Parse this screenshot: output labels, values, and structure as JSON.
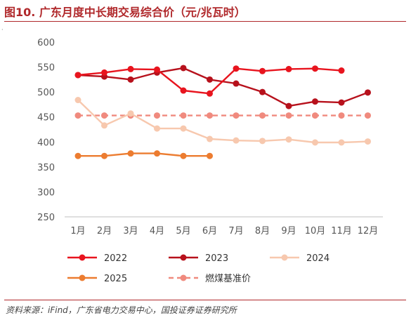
{
  "title": "图10. 广东月度中长期交易综合价（元/兆瓦时）",
  "source": "资料来源：iFind，广东省电力交易中心，国投证券证券研究所",
  "colors": {
    "2022": "#e8141e",
    "2023": "#b7111c",
    "2024": "#f7c8ae",
    "2025": "#ec7c30",
    "benchmark": "#f08a7e",
    "rule": "#b0282b"
  },
  "chart_data": {
    "type": "line",
    "categories": [
      "1月",
      "2月",
      "3月",
      "4月",
      "5月",
      "6月",
      "7月",
      "8月",
      "9月",
      "10月",
      "11月",
      "12月"
    ],
    "yticks": [
      250,
      300,
      350,
      400,
      450,
      500,
      550,
      600
    ],
    "ylim": [
      250,
      600
    ],
    "grid": false,
    "legend_position": "bottom",
    "series": [
      {
        "name": "2022",
        "key": "2022",
        "values": [
          534,
          539,
          546,
          545,
          503,
          497,
          547,
          542,
          546,
          547,
          543,
          null
        ]
      },
      {
        "name": "2023",
        "key": "2023",
        "values": [
          534,
          531,
          525,
          539,
          548,
          525,
          517,
          500,
          472,
          481,
          479,
          499
        ]
      },
      {
        "name": "2024",
        "key": "2024",
        "values": [
          484,
          433,
          457,
          427,
          427,
          406,
          403,
          402,
          405,
          399,
          399,
          401
        ]
      },
      {
        "name": "2025",
        "key": "2025",
        "values": [
          372,
          372,
          377,
          377,
          372,
          372,
          null,
          null,
          null,
          null,
          null,
          null
        ]
      },
      {
        "name": "燃煤基准价",
        "key": "benchmark",
        "dashed": true,
        "values": [
          453,
          453,
          453,
          453,
          453,
          453,
          453,
          453,
          453,
          453,
          453,
          453
        ]
      }
    ]
  }
}
